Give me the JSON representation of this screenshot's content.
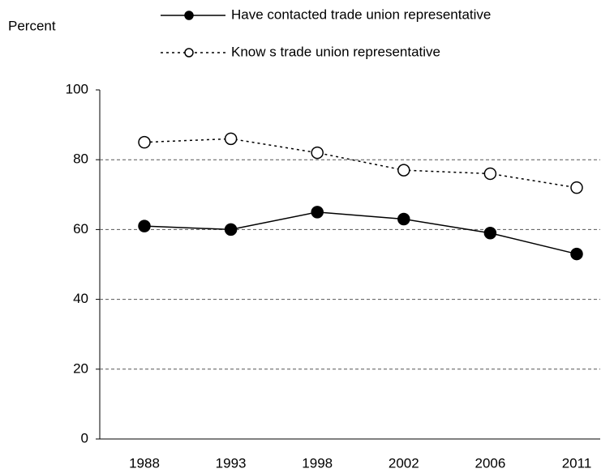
{
  "chart_data": {
    "type": "line",
    "y_label": "Percent",
    "categories": [
      "1988",
      "1993",
      "1998",
      "2002",
      "2006",
      "2011"
    ],
    "series": [
      {
        "name": "Have contacted trade union representative",
        "color": "#000000",
        "linestyle": "solid",
        "marker": "filled",
        "values": [
          61,
          60,
          65,
          63,
          59,
          53
        ]
      },
      {
        "name": "Know s trade union representative",
        "color": "#000000",
        "linestyle": "dashed",
        "marker": "open",
        "values": [
          85,
          86,
          82,
          77,
          76,
          72
        ]
      }
    ],
    "ylim": [
      0,
      100
    ],
    "yticks": [
      0,
      20,
      40,
      60,
      80,
      100
    ],
    "grid": true
  }
}
